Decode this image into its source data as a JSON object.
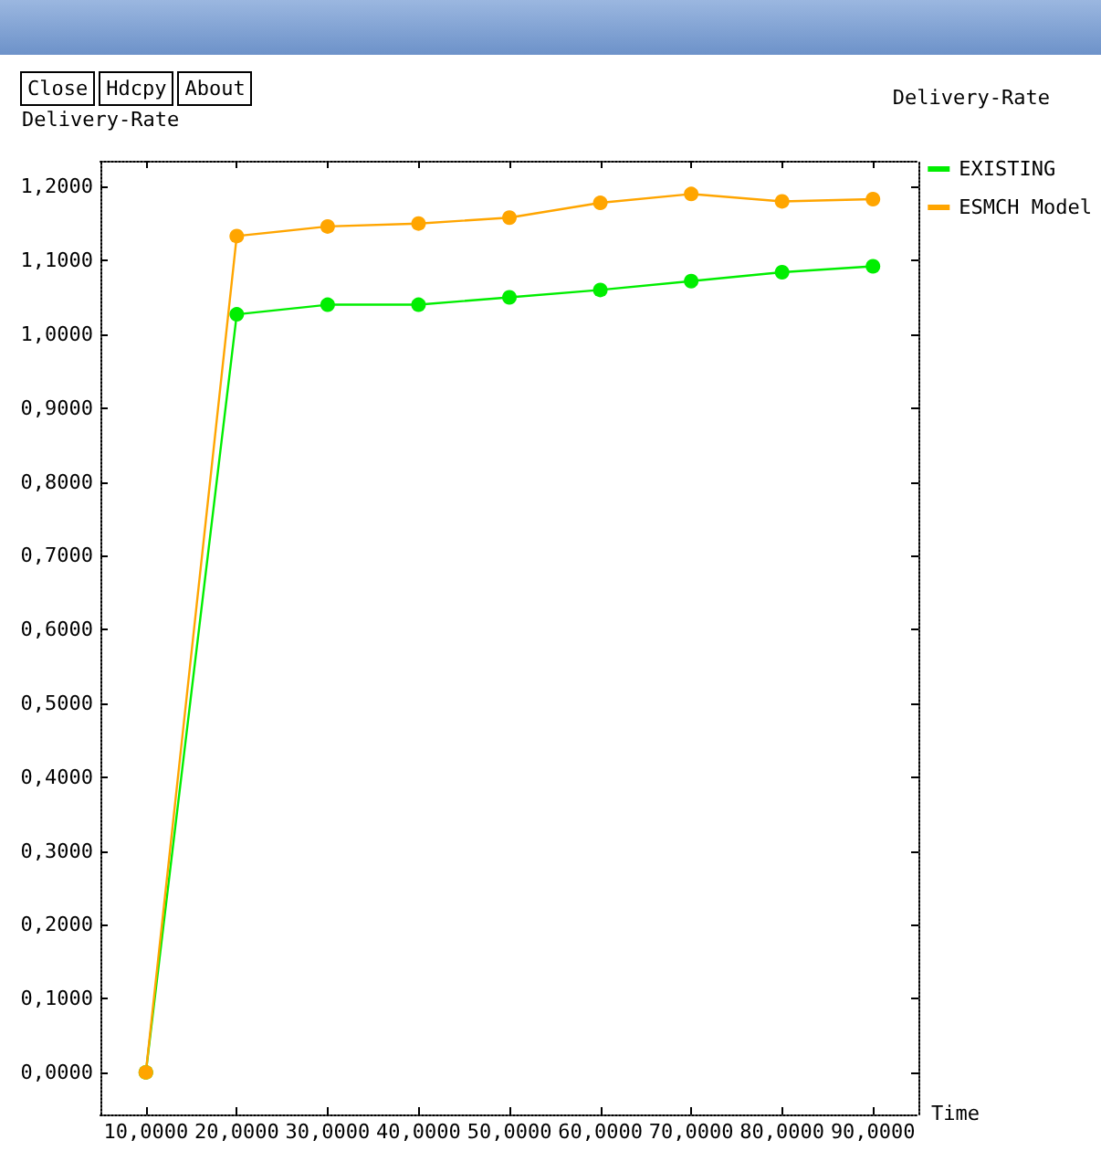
{
  "chart_data": {
    "type": "line",
    "title": "Delivery-Rate",
    "ylabel": "Delivery-Rate",
    "xlabel": "Time",
    "annotations": [
      "Close",
      "Hdcpy",
      "About"
    ],
    "categories": [
      "10,0000",
      "20,0000",
      "30,0000",
      "40,0000",
      "50,0000",
      "60,0000",
      "70,0000",
      "80,0000",
      "90,0000"
    ],
    "series": [
      {
        "name": "EXISTING",
        "color": "#00ee00",
        "values": [
          0,
          1.027,
          1.04,
          1.04,
          1.05,
          1.06,
          1.072,
          1.084,
          1.092
        ]
      },
      {
        "name": "ESMCH Model",
        "color": "#ffa500",
        "values": [
          0,
          1.133,
          1.146,
          1.15,
          1.158,
          1.178,
          1.19,
          1.18,
          1.183
        ]
      }
    ],
    "ylim": [
      -0.057,
      1.235
    ],
    "yticks": [
      {
        "value": 0,
        "label": "0,0000"
      },
      {
        "value": 0.1,
        "label": "0,1000"
      },
      {
        "value": 0.2,
        "label": "0,2000"
      },
      {
        "value": 0.3,
        "label": "0,3000"
      },
      {
        "value": 0.4,
        "label": "0,4000"
      },
      {
        "value": 0.5,
        "label": "0,5000"
      },
      {
        "value": 0.6,
        "label": "0,6000"
      },
      {
        "value": 0.7,
        "label": "0,7000"
      },
      {
        "value": 0.8,
        "label": "0,8000"
      },
      {
        "value": 0.9,
        "label": "0,9000"
      },
      {
        "value": 1,
        "label": "1,0000"
      },
      {
        "value": 1.1,
        "label": "1,1000"
      },
      {
        "value": 1.2,
        "label": "1,2000"
      }
    ],
    "grid": false,
    "legend": "right",
    "marker": "circle",
    "line_style": "solid"
  }
}
